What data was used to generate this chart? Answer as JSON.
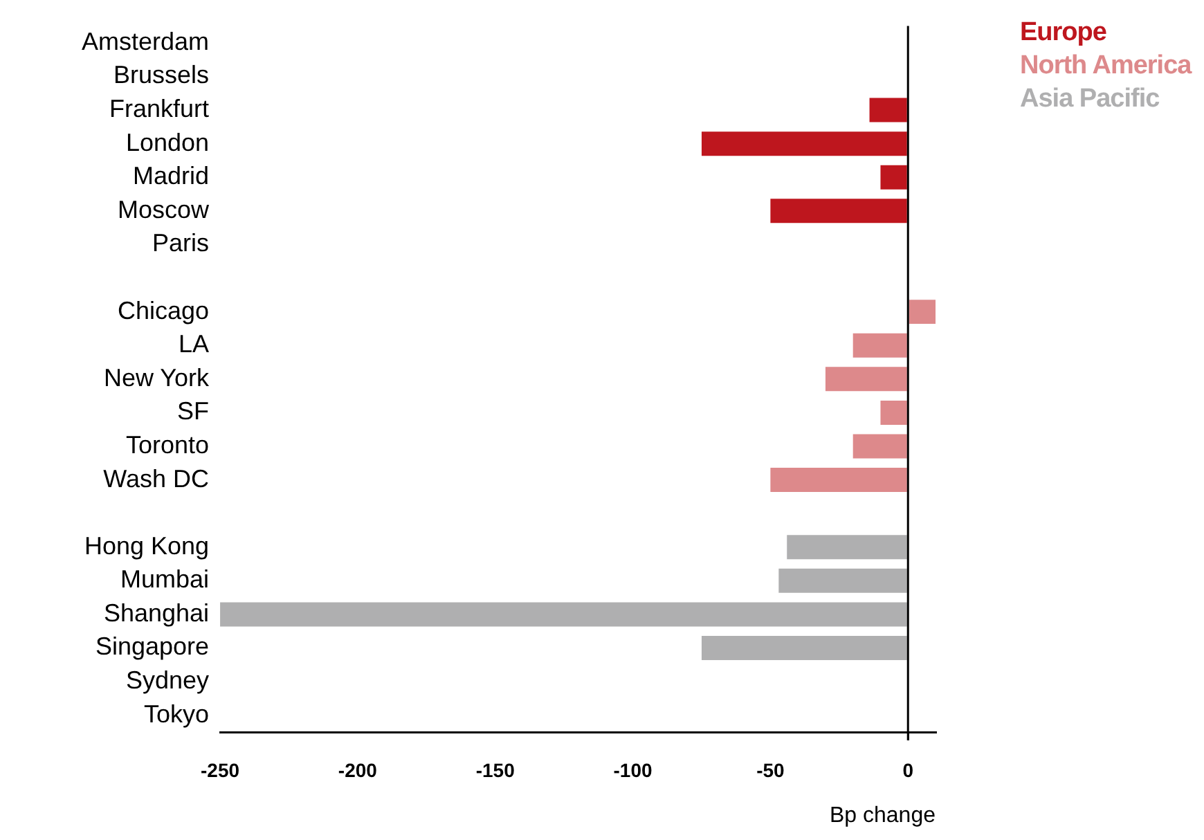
{
  "chart_data": {
    "type": "bar",
    "orientation": "horizontal",
    "stacked": true,
    "xlabel": "Bp change",
    "categories": [
      "Amsterdam",
      "Brussels",
      "Frankfurt",
      "London",
      "Madrid",
      "Moscow",
      "Paris",
      null,
      "Chicago",
      "LA",
      "New York",
      "SF",
      "Toronto",
      "Wash DC",
      null,
      "Hong Kong",
      "Mumbai",
      "Shanghai",
      "Singapore",
      "Sydney",
      "Tokyo"
    ],
    "series": [
      {
        "name": "Europe",
        "color": "#be161e",
        "values": [
          0,
          0,
          -14,
          -75,
          -10,
          -50,
          0,
          null,
          null,
          null,
          null,
          null,
          null,
          null,
          null,
          null,
          null,
          null,
          null,
          null,
          null
        ]
      },
      {
        "name": "North America",
        "color": "#dd898b",
        "values": [
          null,
          null,
          null,
          null,
          null,
          null,
          null,
          null,
          10,
          -20,
          -30,
          -10,
          -20,
          -50,
          null,
          null,
          null,
          null,
          null,
          null,
          null
        ]
      },
      {
        "name": "Asia Pacific",
        "color": "#afafb0",
        "values": [
          null,
          null,
          null,
          null,
          null,
          null,
          null,
          null,
          null,
          null,
          null,
          null,
          null,
          null,
          null,
          -44,
          -47,
          -250,
          -75,
          0,
          0
        ]
      }
    ],
    "xlim": [
      -250,
      10
    ],
    "xticks": [
      -250,
      -200,
      -150,
      -100,
      -50,
      0
    ],
    "grid": false,
    "ref_lines": [
      {
        "axis": "x",
        "value": 0,
        "color": "#000000"
      }
    ],
    "legend": "top right"
  }
}
